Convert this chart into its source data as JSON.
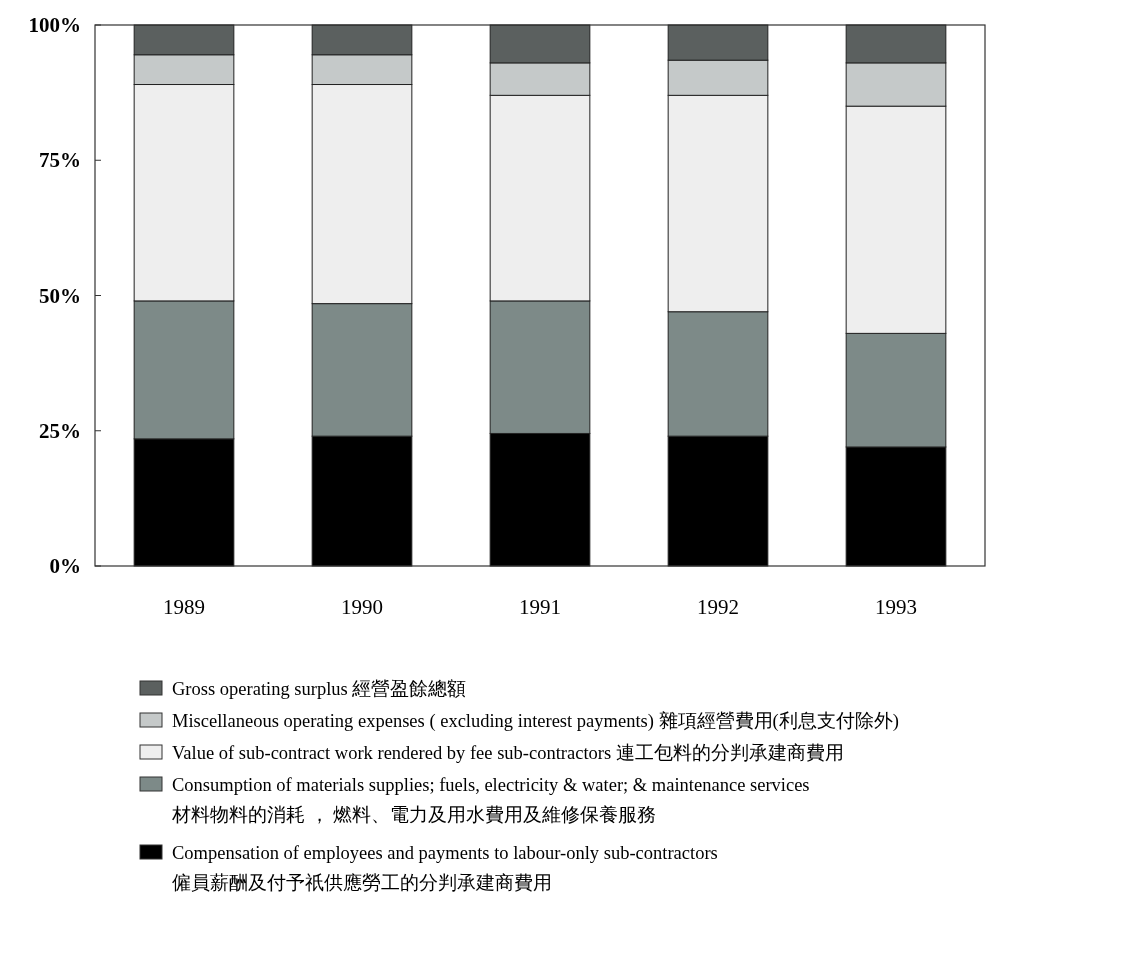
{
  "chart_data": {
    "type": "bar",
    "stacked": true,
    "categories": [
      "1989",
      "1990",
      "1991",
      "1992",
      "1993"
    ],
    "ylim": [
      0,
      100
    ],
    "yticks": [
      {
        "value": 0,
        "label": "0%"
      },
      {
        "value": 25,
        "label": "25%"
      },
      {
        "value": 50,
        "label": "50%"
      },
      {
        "value": 75,
        "label": "75%"
      },
      {
        "value": 100,
        "label": "100%"
      }
    ],
    "grid": false,
    "legend": "bottom",
    "series": [
      {
        "name": "Compensation of employees and payments to labour-only sub-contractors\n僱員薪酬及付予祇供應勞工的分判承建商費用",
        "color": "#000000",
        "values": [
          23.5,
          24,
          24.5,
          24,
          22
        ]
      },
      {
        "name": "Consumption of materials supplies; fuels, electricity & water; & maintenance services\n材料物料的消耗 ， 燃料、電力及用水費用及維修保養服務",
        "color": "#7d8a88",
        "values": [
          25.5,
          24.5,
          24.5,
          23,
          21
        ]
      },
      {
        "name": "Value of sub-contract work rendered by fee sub-contractors 連工包料的分判承建商費用",
        "color": "#eeeeee",
        "values": [
          40,
          40.5,
          38,
          40,
          42
        ]
      },
      {
        "name": "Miscellaneous operating expenses ( excluding interest payments) 雜項經營費用(利息支付除外)",
        "color": "#c5c9c9",
        "values": [
          5.5,
          5.5,
          6,
          6.5,
          8
        ]
      },
      {
        "name": "Gross operating surplus 經營盈餘總額",
        "color": "#5b605f",
        "values": [
          5.5,
          5.5,
          7,
          6.5,
          7
        ]
      }
    ]
  }
}
